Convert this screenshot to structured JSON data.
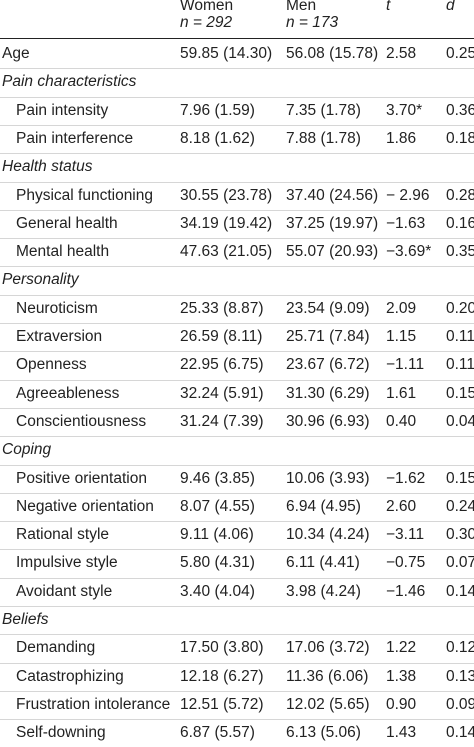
{
  "header": {
    "women_label": "Women",
    "women_n": "n = 292",
    "men_label": "Men",
    "men_n": "n = 173",
    "t_label": "t",
    "d_label": "d"
  },
  "rows": [
    {
      "type": "data",
      "indent": false,
      "label": "Age",
      "women": "59.85 (14.30)",
      "men": "56.08 (15.78)",
      "t": "2.58",
      "d": "0.25"
    },
    {
      "type": "section",
      "label": "Pain characteristics"
    },
    {
      "type": "data",
      "indent": true,
      "label": "Pain intensity",
      "women": "7.96 (1.59)",
      "men": "7.35 (1.78)",
      "t": "3.70*",
      "d": "0.36"
    },
    {
      "type": "data",
      "indent": true,
      "label": "Pain interference",
      "women": "8.18 (1.62)",
      "men": "7.88 (1.78)",
      "t": "1.86",
      "d": "0.18"
    },
    {
      "type": "section",
      "label": "Health status"
    },
    {
      "type": "data",
      "indent": true,
      "label": "Physical functioning",
      "women": "30.55 (23.78)",
      "men": "37.40 (24.56)",
      "t": "− 2.96",
      "d": "0.28"
    },
    {
      "type": "data",
      "indent": true,
      "label": "General health",
      "women": "34.19 (19.42)",
      "men": "37.25 (19.97)",
      "t": "−1.63",
      "d": "0.16"
    },
    {
      "type": "data",
      "indent": true,
      "label": "Mental health",
      "women": "47.63 (21.05)",
      "men": "55.07 (20.93)",
      "t": "−3.69*",
      "d": "0.35"
    },
    {
      "type": "section",
      "label": "Personality"
    },
    {
      "type": "data",
      "indent": true,
      "label": "Neuroticism",
      "women": "25.33 (8.87)",
      "men": "23.54 (9.09)",
      "t": "2.09",
      "d": "0.20"
    },
    {
      "type": "data",
      "indent": true,
      "label": "Extraversion",
      "women": "26.59 (8.11)",
      "men": "25.71 (7.84)",
      "t": "1.15",
      "d": "0.11"
    },
    {
      "type": "data",
      "indent": true,
      "label": "Openness",
      "women": "22.95 (6.75)",
      "men": "23.67 (6.72)",
      "t": "−1.11",
      "d": "0.11"
    },
    {
      "type": "data",
      "indent": true,
      "label": "Agreeableness",
      "women": "32.24 (5.91)",
      "men": "31.30 (6.29)",
      "t": "1.61",
      "d": "0.15"
    },
    {
      "type": "data",
      "indent": true,
      "label": "Conscientiousness",
      "women": "31.24 (7.39)",
      "men": "30.96 (6.93)",
      "t": "0.40",
      "d": "0.04"
    },
    {
      "type": "section",
      "label": "Coping"
    },
    {
      "type": "data",
      "indent": true,
      "label": "Positive orientation",
      "women": "9.46 (3.85)",
      "men": "10.06 (3.93)",
      "t": "−1.62",
      "d": "0.15"
    },
    {
      "type": "data",
      "indent": true,
      "label": "Negative orientation",
      "women": "8.07 (4.55)",
      "men": "6.94 (4.95)",
      "t": "2.60",
      "d": "0.24"
    },
    {
      "type": "data",
      "indent": true,
      "label": "Rational style",
      "women": "9.11 (4.06)",
      "men": "10.34 (4.24)",
      "t": "−3.11",
      "d": "0.30"
    },
    {
      "type": "data",
      "indent": true,
      "label": "Impulsive style",
      "women": "5.80 (4.31)",
      "men": "6.11 (4.41)",
      "t": "−0.75",
      "d": "0.07"
    },
    {
      "type": "data",
      "indent": true,
      "label": "Avoidant style",
      "women": "3.40 (4.04)",
      "men": "3.98 (4.24)",
      "t": "−1.46",
      "d": "0.14"
    },
    {
      "type": "section",
      "label": "Beliefs"
    },
    {
      "type": "data",
      "indent": true,
      "label": "Demanding",
      "women": "17.50 (3.80)",
      "men": "17.06 (3.72)",
      "t": "1.22",
      "d": "0.12"
    },
    {
      "type": "data",
      "indent": true,
      "label": "Catastrophizing",
      "women": "12.18 (6.27)",
      "men": "11.36 (6.06)",
      "t": "1.38",
      "d": "0.13"
    },
    {
      "type": "data",
      "indent": true,
      "label": "Frustration intolerance",
      "women": "12.51 (5.72)",
      "men": "12.02 (5.65)",
      "t": "0.90",
      "d": "0.09"
    },
    {
      "type": "data",
      "indent": true,
      "label": "Self-downing",
      "women": "6.87 (5.57)",
      "men": "6.13 (5.06)",
      "t": "1.43",
      "d": "0.14"
    }
  ]
}
